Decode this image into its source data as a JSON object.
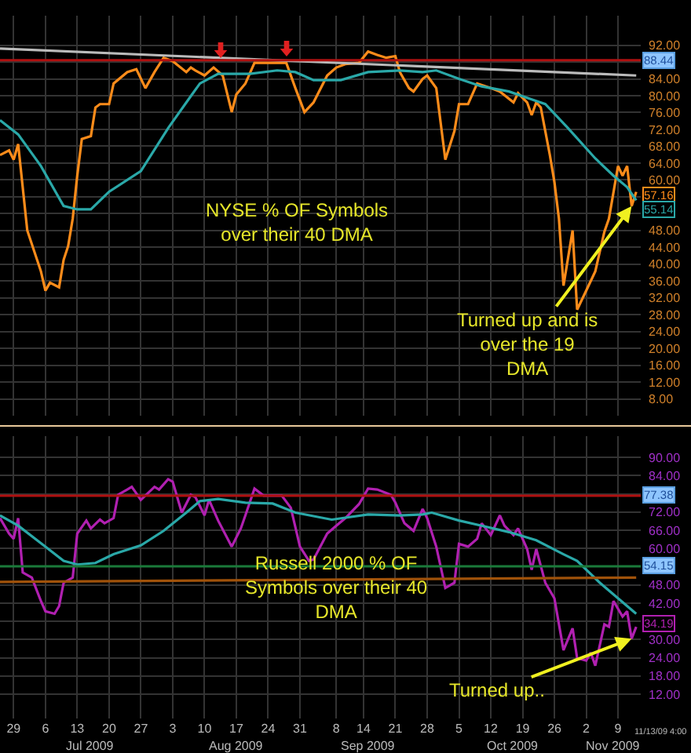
{
  "chart_data": [
    {
      "type": "line",
      "xlim": [
        "2009-06-26",
        "2009-11-14"
      ],
      "xticks": [
        {
          "value": "2009-06-29",
          "label": null
        },
        {
          "value": "2009-07-06",
          "label": null
        },
        {
          "value": "2009-07-13",
          "label": null
        },
        {
          "value": "2009-07-20",
          "label": null
        },
        {
          "value": "2009-07-27",
          "label": null
        },
        {
          "value": "2009-08-03",
          "label": null
        },
        {
          "value": "2009-08-10",
          "label": null
        },
        {
          "value": "2009-08-17",
          "label": null
        },
        {
          "value": "2009-08-24",
          "label": null
        },
        {
          "value": "2009-08-31",
          "label": null
        },
        {
          "value": "2009-09-08",
          "label": null
        },
        {
          "value": "2009-09-14",
          "label": null
        },
        {
          "value": "2009-09-21",
          "label": null
        },
        {
          "value": "2009-09-28",
          "label": null
        },
        {
          "value": "2009-10-05",
          "label": null
        },
        {
          "value": "2009-10-12",
          "label": null
        },
        {
          "value": "2009-10-19",
          "label": null
        },
        {
          "value": "2009-10-26",
          "label": null
        },
        {
          "value": "2009-11-02",
          "label": null
        },
        {
          "value": "2009-11-09",
          "label": null
        }
      ],
      "ylim": [
        4,
        99
      ],
      "yticks": [
        {
          "value": 92,
          "label": "92.00"
        },
        {
          "value": 88,
          "label": null
        },
        {
          "value": 84,
          "label": "84.00"
        },
        {
          "value": 80,
          "label": "80.00"
        },
        {
          "value": 76,
          "label": "76.00"
        },
        {
          "value": 72,
          "label": "72.00"
        },
        {
          "value": 68,
          "label": "68.00"
        },
        {
          "value": 64,
          "label": "64.00"
        },
        {
          "value": 60,
          "label": "60.00"
        },
        {
          "value": 56,
          "label": null
        },
        {
          "value": 52,
          "label": null
        },
        {
          "value": 48,
          "label": "48.00"
        },
        {
          "value": 44,
          "label": "44.00"
        },
        {
          "value": 40,
          "label": "40.00"
        },
        {
          "value": 36,
          "label": "36.00"
        },
        {
          "value": 32,
          "label": "32.00"
        },
        {
          "value": 28,
          "label": "28.00"
        },
        {
          "value": 24,
          "label": "24.00"
        },
        {
          "value": 20,
          "label": "20.00"
        },
        {
          "value": 16,
          "label": "16.00"
        },
        {
          "value": 12,
          "label": "12.00"
        },
        {
          "value": 8,
          "label": "8.00"
        }
      ],
      "tick_labels": "y",
      "grid": true,
      "series": [
        {
          "color": "#ff8c1a",
          "x": [
            "2009-06-26",
            "2009-06-28",
            "2009-06-29",
            "2009-06-30",
            "2009-07-02",
            "2009-07-05",
            "2009-07-06",
            "2009-07-07",
            "2009-07-09",
            "2009-07-10",
            "2009-07-11",
            "2009-07-12",
            "2009-07-13",
            "2009-07-14",
            "2009-07-16",
            "2009-07-17",
            "2009-07-18",
            "2009-07-20",
            "2009-07-21",
            "2009-07-24",
            "2009-07-26",
            "2009-07-28",
            "2009-07-30",
            "2009-08-01",
            "2009-08-03",
            "2009-08-06",
            "2009-08-07",
            "2009-08-08",
            "2009-08-10",
            "2009-08-12",
            "2009-08-14",
            "2009-08-16",
            "2009-08-17",
            "2009-08-19",
            "2009-08-21",
            "2009-08-25",
            "2009-08-28",
            "2009-08-30",
            "2009-09-01",
            "2009-09-03",
            "2009-09-06",
            "2009-09-08",
            "2009-09-10",
            "2009-09-13",
            "2009-09-15",
            "2009-09-17",
            "2009-09-19",
            "2009-09-21",
            "2009-09-22",
            "2009-09-24",
            "2009-09-25",
            "2009-09-27",
            "2009-09-28",
            "2009-09-30",
            "2009-10-02",
            "2009-10-04",
            "2009-10-05",
            "2009-10-07",
            "2009-10-09",
            "2009-10-12",
            "2009-10-14",
            "2009-10-17",
            "2009-10-18",
            "2009-10-20",
            "2009-10-21",
            "2009-10-22",
            "2009-10-23",
            "2009-10-25",
            "2009-10-26",
            "2009-10-27",
            "2009-10-28",
            "2009-10-30",
            "2009-10-31",
            "2009-11-02",
            "2009-11-04",
            "2009-11-06",
            "2009-11-07",
            "2009-11-09",
            "2009-11-10",
            "2009-11-11",
            "2009-11-12",
            "2009-11-13"
          ],
          "values": [
            65.9,
            67,
            64.8,
            68.5,
            48,
            38.3,
            33.7,
            35.6,
            34.5,
            41,
            44.3,
            50.8,
            61,
            69.7,
            70.4,
            77.2,
            78,
            78,
            82.9,
            85.6,
            86.3,
            81.8,
            85.6,
            89,
            88.2,
            85.6,
            86.7,
            86,
            84.8,
            86.7,
            84.8,
            76.1,
            80.3,
            82.9,
            87.8,
            87.8,
            87.8,
            81.8,
            76.1,
            78.4,
            84.8,
            86.7,
            87.5,
            87.8,
            90.5,
            89.7,
            89,
            89.4,
            85.6,
            81.8,
            81,
            84,
            84.8,
            81.8,
            64.8,
            71.6,
            78,
            78,
            82.9,
            81.8,
            81,
            78.4,
            80.6,
            78.4,
            75.4,
            78.4,
            77.2,
            65.9,
            59.5,
            50.8,
            34.9,
            48,
            29.2,
            33.7,
            38.3,
            47.7,
            50.8,
            63.3,
            61,
            63.3,
            53.8,
            57.16
          ],
          "value_labels": [
            null,
            null,
            null,
            null,
            null,
            null,
            null,
            null,
            null,
            null,
            null,
            null,
            null,
            null,
            null,
            null,
            null,
            null,
            null,
            null,
            null,
            null,
            null,
            null,
            null,
            null,
            null,
            null,
            null,
            null,
            null,
            null,
            null,
            null,
            null,
            null,
            null,
            null,
            null,
            null,
            null,
            null,
            null,
            null,
            null,
            null,
            null,
            null,
            null,
            null,
            null,
            null,
            null,
            null,
            null,
            null,
            null,
            null,
            null,
            null,
            null,
            null,
            null,
            null,
            null,
            null,
            null,
            null,
            null,
            null,
            null,
            null,
            null,
            null,
            null,
            null,
            null,
            null,
            null,
            null,
            null,
            "57.16"
          ]
        },
        {
          "color": "#2aa8a8",
          "x": [
            "2009-06-26",
            "2009-06-30",
            "2009-07-05",
            "2009-07-10",
            "2009-07-13",
            "2009-07-16",
            "2009-07-20",
            "2009-07-27",
            "2009-08-02",
            "2009-08-07",
            "2009-08-09",
            "2009-08-13",
            "2009-08-20",
            "2009-08-26",
            "2009-08-30",
            "2009-09-03",
            "2009-09-09",
            "2009-09-15",
            "2009-09-22",
            "2009-09-27",
            "2009-09-30",
            "2009-10-05",
            "2009-10-10",
            "2009-10-16",
            "2009-10-21",
            "2009-10-24",
            "2009-10-29",
            "2009-11-04",
            "2009-11-08",
            "2009-11-11",
            "2009-11-13"
          ],
          "values": [
            74.2,
            70.8,
            63.3,
            53.8,
            53,
            53,
            57.2,
            62.1,
            72.3,
            79.9,
            82.9,
            85.2,
            85.2,
            86,
            85.6,
            83.7,
            83.7,
            85.6,
            86,
            85.6,
            86,
            84,
            82.2,
            81,
            79.1,
            78,
            72.3,
            65.1,
            61,
            58.3,
            55.14
          ],
          "value_labels": [
            null,
            null,
            null,
            null,
            null,
            null,
            null,
            null,
            null,
            null,
            null,
            null,
            null,
            null,
            null,
            null,
            null,
            null,
            null,
            null,
            null,
            null,
            null,
            null,
            null,
            null,
            null,
            null,
            null,
            null,
            "55.14"
          ]
        },
        {
          "color": "#bbbbbb",
          "x": [
            "2009-06-26",
            "2009-11-13"
          ],
          "values": [
            91.2,
            84.8
          ]
        }
      ],
      "ref_lines": [
        {
          "axis": "y",
          "value": 88.44,
          "label": "88.44",
          "color": "#b01010"
        }
      ],
      "annotations": [
        "NYSE % OF Symbols\nover their 40 DMA",
        {
          "text": "Turned up and is\nover the 19\nDMA",
          "x": "2009-11-12",
          "y": 53.8
        }
      ]
    },
    {
      "type": "line",
      "xlim": [
        "2009-06-26",
        "2009-11-14"
      ],
      "xticks": [
        {
          "value": "2009-06-29",
          "label": "29"
        },
        {
          "value": "2009-07-06",
          "label": "6"
        },
        {
          "value": "2009-07-13",
          "label": "13"
        },
        {
          "value": "2009-07-20",
          "label": "20"
        },
        {
          "value": "2009-07-27",
          "label": "27"
        },
        {
          "value": "2009-08-03",
          "label": "3"
        },
        {
          "value": "2009-08-10",
          "label": "10"
        },
        {
          "value": "2009-08-17",
          "label": "17"
        },
        {
          "value": "2009-08-24",
          "label": "24"
        },
        {
          "value": "2009-08-31",
          "label": "31"
        },
        {
          "value": "2009-09-08",
          "label": "8"
        },
        {
          "value": "2009-09-14",
          "label": "14"
        },
        {
          "value": "2009-09-21",
          "label": "21"
        },
        {
          "value": "2009-09-28",
          "label": "28"
        },
        {
          "value": "2009-10-05",
          "label": "5"
        },
        {
          "value": "2009-10-12",
          "label": "12"
        },
        {
          "value": "2009-10-19",
          "label": "19"
        },
        {
          "value": "2009-10-26",
          "label": "26"
        },
        {
          "value": "2009-11-02",
          "label": "2"
        },
        {
          "value": "2009-11-09",
          "label": "9"
        }
      ],
      "x2lim": [
        "2009-06-26",
        "2009-11-14"
      ],
      "x2ticks": [
        {
          "value": "2009-07-16",
          "label": "Jul 2009"
        },
        {
          "value": "2009-08-17",
          "label": "Aug 2009"
        },
        {
          "value": "2009-09-15",
          "label": "Sep 2009"
        },
        {
          "value": "2009-10-17",
          "label": "Oct 2009"
        },
        {
          "value": "2009-11-08",
          "label": "Nov 2009"
        }
      ],
      "ylim": [
        4,
        97
      ],
      "yticks": [
        {
          "value": 90,
          "label": "90.00"
        },
        {
          "value": 84,
          "label": "84.00"
        },
        {
          "value": 78,
          "label": null
        },
        {
          "value": 72,
          "label": "72.00"
        },
        {
          "value": 66,
          "label": "66.00"
        },
        {
          "value": 60,
          "label": "60.00"
        },
        {
          "value": 54,
          "label": null
        },
        {
          "value": 48,
          "label": "48.00"
        },
        {
          "value": 42,
          "label": "42.00"
        },
        {
          "value": 36,
          "label": null
        },
        {
          "value": 30,
          "label": "30.00"
        },
        {
          "value": 24,
          "label": "24.00"
        },
        {
          "value": 18,
          "label": "18.00"
        },
        {
          "value": 12,
          "label": "12.00"
        }
      ],
      "grid": true,
      "series": [
        {
          "color": "#b020b0",
          "x": [
            "2009-06-26",
            "2009-06-28",
            "2009-06-29",
            "2009-06-30",
            "2009-07-01",
            "2009-07-03",
            "2009-07-05",
            "2009-07-06",
            "2009-07-08",
            "2009-07-09",
            "2009-07-10",
            "2009-07-12",
            "2009-07-13",
            "2009-07-15",
            "2009-07-16",
            "2009-07-18",
            "2009-07-19",
            "2009-07-21",
            "2009-07-22",
            "2009-07-24",
            "2009-07-25",
            "2009-07-27",
            "2009-07-30",
            "2009-07-31",
            "2009-08-02",
            "2009-08-03",
            "2009-08-05",
            "2009-08-07",
            "2009-08-08",
            "2009-08-10",
            "2009-08-11",
            "2009-08-13",
            "2009-08-16",
            "2009-08-18",
            "2009-08-19",
            "2009-08-21",
            "2009-08-23",
            "2009-08-27",
            "2009-08-29",
            "2009-08-31",
            "2009-09-02",
            "2009-09-03",
            "2009-09-06",
            "2009-09-08",
            "2009-09-10",
            "2009-09-13",
            "2009-09-15",
            "2009-09-17",
            "2009-09-20",
            "2009-09-21",
            "2009-09-23",
            "2009-09-25",
            "2009-09-27",
            "2009-09-28",
            "2009-09-30",
            "2009-10-02",
            "2009-10-04",
            "2009-10-05",
            "2009-10-07",
            "2009-10-09",
            "2009-10-10",
            "2009-10-12",
            "2009-10-14",
            "2009-10-15",
            "2009-10-17",
            "2009-10-18",
            "2009-10-20",
            "2009-10-21",
            "2009-10-22",
            "2009-10-24",
            "2009-10-26",
            "2009-10-28",
            "2009-10-30",
            "2009-10-31",
            "2009-11-02",
            "2009-11-03",
            "2009-11-04",
            "2009-11-06",
            "2009-11-07",
            "2009-11-08",
            "2009-11-10",
            "2009-11-11",
            "2009-11-12",
            "2009-11-13"
          ],
          "values": [
            70,
            64.9,
            63.2,
            70,
            52.1,
            50.4,
            42.7,
            39.3,
            38.5,
            41,
            48.7,
            50.4,
            64.9,
            69.2,
            66.6,
            69.5,
            68.3,
            70,
            77.7,
            79.4,
            80.3,
            76,
            80.3,
            79.4,
            82.8,
            82,
            71.8,
            77.7,
            76.9,
            70.9,
            76,
            69.2,
            60.6,
            66.6,
            70.9,
            79.7,
            77.4,
            77.4,
            73.4,
            60.6,
            55.9,
            56.4,
            64.9,
            67.5,
            70,
            74.6,
            79.7,
            79.4,
            77.7,
            75.1,
            68.3,
            65.8,
            73,
            70,
            60.6,
            47,
            48.7,
            61.5,
            60.6,
            63.2,
            68.3,
            64.4,
            70.9,
            67.5,
            64.4,
            66.6,
            59.8,
            53,
            59.8,
            48.7,
            43.6,
            26.5,
            33.7,
            23.9,
            23.1,
            25.7,
            21.4,
            35,
            34.2,
            42.7,
            37.6,
            39.3,
            30.3,
            34.19
          ],
          "value_labels": [
            null,
            null,
            null,
            null,
            null,
            null,
            null,
            null,
            null,
            null,
            null,
            null,
            null,
            null,
            null,
            null,
            null,
            null,
            null,
            null,
            null,
            null,
            null,
            null,
            null,
            null,
            null,
            null,
            null,
            null,
            null,
            null,
            null,
            null,
            null,
            null,
            null,
            null,
            null,
            null,
            null,
            null,
            null,
            null,
            null,
            null,
            null,
            null,
            null,
            null,
            null,
            null,
            null,
            null,
            null,
            null,
            null,
            null,
            null,
            null,
            null,
            null,
            null,
            null,
            null,
            null,
            null,
            null,
            null,
            null,
            null,
            null,
            null,
            null,
            null,
            null,
            null,
            null,
            null,
            null,
            null,
            null,
            null,
            "34.19"
          ]
        },
        {
          "color": "#2aa8a8",
          "x": [
            "2009-06-26",
            "2009-06-30",
            "2009-07-06",
            "2009-07-10",
            "2009-07-13",
            "2009-07-17",
            "2009-07-21",
            "2009-07-27",
            "2009-08-01",
            "2009-08-06",
            "2009-08-09",
            "2009-08-13",
            "2009-08-19",
            "2009-08-25",
            "2009-08-30",
            "2009-09-07",
            "2009-09-15",
            "2009-09-22",
            "2009-09-27",
            "2009-09-29",
            "2009-10-05",
            "2009-10-10",
            "2009-10-16",
            "2009-10-22",
            "2009-10-28",
            "2009-10-31",
            "2009-11-05",
            "2009-11-09",
            "2009-11-13"
          ],
          "values": [
            70.9,
            67.5,
            60.6,
            55.9,
            54.7,
            55.2,
            58.1,
            61,
            65.8,
            71.8,
            75.6,
            76.3,
            75.1,
            74.8,
            71.8,
            69.5,
            71.2,
            70.9,
            71.2,
            71.8,
            69.2,
            67.5,
            65.4,
            62.7,
            58.1,
            55.9,
            48.7,
            43.6,
            38.5
          ]
        },
        {
          "color": "#a0520a",
          "x": [
            "2009-06-26",
            "2009-11-13"
          ],
          "values": [
            49,
            50.4
          ]
        }
      ],
      "ref_lines": [
        {
          "axis": "y",
          "value": 77.38,
          "label": "77.38",
          "color": "#b01010"
        },
        {
          "axis": "y",
          "value": 54.15,
          "label": "54.15",
          "color": "#1a7a3a"
        }
      ],
      "annotations": [
        "Russell 2000 % OF\nSymbols over their 40\nDMA",
        {
          "text": "Turned up..",
          "x": "2009-11-12",
          "y": 30.3
        },
        "11/13/09 4:00"
      ]
    }
  ]
}
